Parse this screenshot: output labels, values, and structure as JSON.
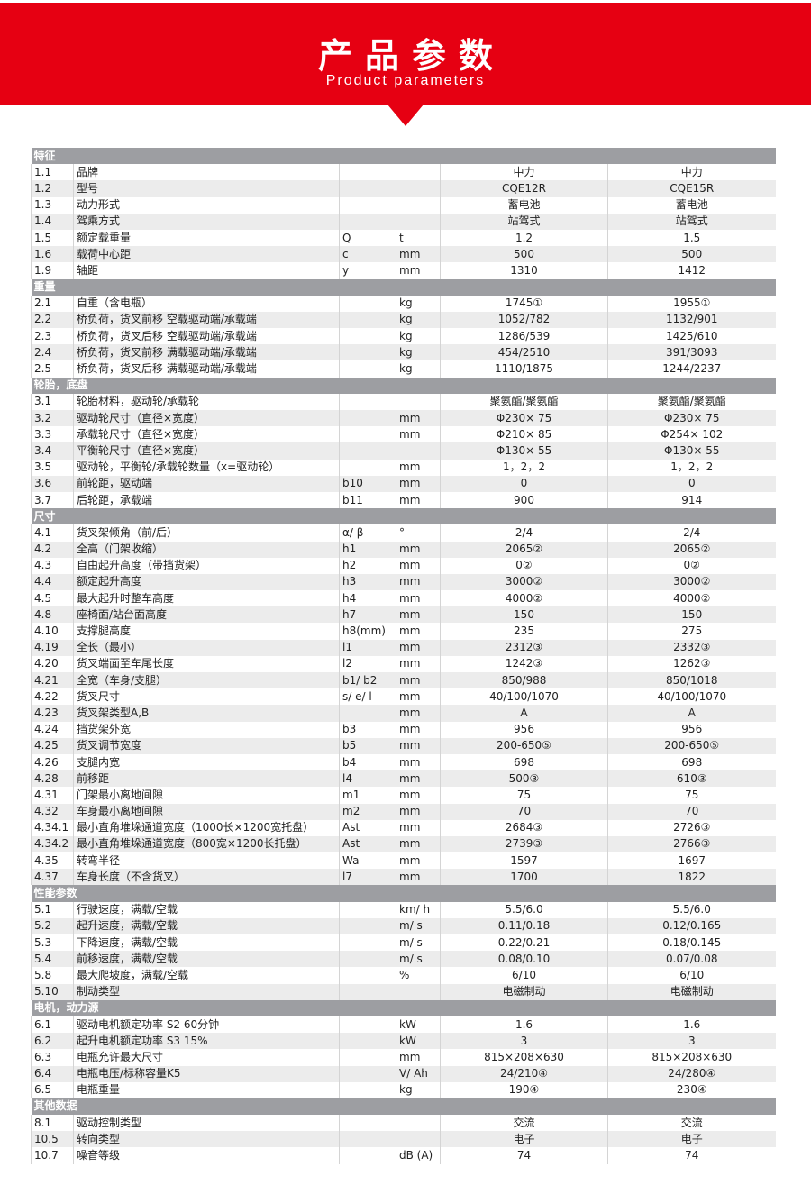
{
  "header": {
    "title": "产品参数",
    "subtitle": "Product parameters"
  },
  "colors": {
    "brand": "#e60012",
    "section": "#9d9ea2",
    "alt_row": "#ececec"
  },
  "sections": [
    {
      "title": "特征",
      "rows": [
        [
          "1.1",
          "品牌",
          "",
          "",
          "中力",
          "中力"
        ],
        [
          "1.2",
          "型号",
          "",
          "",
          "CQE12R",
          "CQE15R"
        ],
        [
          "1.3",
          "动力形式",
          "",
          "",
          "蓄电池",
          "蓄电池"
        ],
        [
          "1.4",
          "驾乘方式",
          "",
          "",
          "站驾式",
          "站驾式"
        ],
        [
          "1.5",
          "额定载重量",
          "Q",
          "t",
          "1.2",
          "1.5"
        ],
        [
          "1.6",
          "载荷中心距",
          "c",
          "mm",
          "500",
          "500"
        ],
        [
          "1.9",
          "轴距",
          "y",
          "mm",
          "1310",
          "1412"
        ]
      ]
    },
    {
      "title": "重量",
      "rows": [
        [
          "2.1",
          "自重（含电瓶）",
          "",
          "kg",
          "1745①",
          "1955①"
        ],
        [
          "2.2",
          "桥负荷，货叉前移 空载驱动端/承载端",
          "",
          "kg",
          "1052/782",
          "1132/901"
        ],
        [
          "2.3",
          "桥负荷，货叉后移 空载驱动端/承载端",
          "",
          "kg",
          "1286/539",
          "1425/610"
        ],
        [
          "2.4",
          "桥负荷，货叉前移 满载驱动端/承载端",
          "",
          "kg",
          "454/2510",
          "391/3093"
        ],
        [
          "2.5",
          "桥负荷，货叉后移 满载驱动端/承载端",
          "",
          "kg",
          "1110/1875",
          "1244/2237"
        ]
      ]
    },
    {
      "title": "轮胎，底盘",
      "rows": [
        [
          "3.1",
          "轮胎材料，驱动轮/承载轮",
          "",
          "",
          "聚氨酯/聚氨酯",
          "聚氨酯/聚氨酯"
        ],
        [
          "3.2",
          "驱动轮尺寸（直径×宽度）",
          "",
          "mm",
          "Φ230× 75",
          "Φ230× 75"
        ],
        [
          "3.3",
          "承载轮尺寸（直径×宽度）",
          "",
          "mm",
          "Φ210× 85",
          "Φ254× 102"
        ],
        [
          "3.4",
          "平衡轮尺寸（直径×宽度）",
          "",
          "",
          "Φ130× 55",
          "Φ130× 55"
        ],
        [
          "3.5",
          "驱动轮，平衡轮/承载轮数量（x=驱动轮）",
          "",
          "mm",
          "1，2，2",
          "1，2，2"
        ],
        [
          "3.6",
          "前轮距，驱动端",
          "b10",
          "mm",
          "0",
          "0"
        ],
        [
          "3.7",
          "后轮距，承载端",
          "b11",
          "mm",
          "900",
          "914"
        ]
      ]
    },
    {
      "title": "尺寸",
      "rows": [
        [
          "4.1",
          "货叉架倾角（前/后）",
          "α/ β",
          "°",
          "2/4",
          "2/4"
        ],
        [
          "4.2",
          "全高（门架收缩）",
          "h1",
          "mm",
          "2065②",
          "2065②"
        ],
        [
          "4.3",
          "自由起升高度（带挡货架）",
          "h2",
          "mm",
          "0②",
          "0②"
        ],
        [
          "4.4",
          "额定起升高度",
          "h3",
          "mm",
          "3000②",
          "3000②"
        ],
        [
          "4.5",
          "最大起升时整车高度",
          "h4",
          "mm",
          "4000②",
          "4000②"
        ],
        [
          "4.8",
          "座椅面/站台面高度",
          "h7",
          "mm",
          "150",
          "150"
        ],
        [
          "4.10",
          "支撑腿高度",
          "h8(mm)",
          "mm",
          "235",
          "275"
        ],
        [
          "4.19",
          "全长（最小）",
          "l1",
          "mm",
          "2312③",
          "2332③"
        ],
        [
          "4.20",
          "货叉端面至车尾长度",
          "l2",
          "mm",
          "1242③",
          "1262③"
        ],
        [
          "4.21",
          "全宽（车身/支腿）",
          "b1/ b2",
          "mm",
          "850/988",
          "850/1018"
        ],
        [
          "4.22",
          "货叉尺寸",
          "s/ e/ l",
          "mm",
          "40/100/1070",
          "40/100/1070"
        ],
        [
          "4.23",
          "货叉架类型A,B",
          "",
          "mm",
          "A",
          "A"
        ],
        [
          "4.24",
          "挡货架外宽",
          "b3",
          "mm",
          "956",
          "956"
        ],
        [
          "4.25",
          "货叉调节宽度",
          "b5",
          "mm",
          "200-650⑤",
          "200-650⑤"
        ],
        [
          "4.26",
          "支腿内宽",
          "b4",
          "mm",
          "698",
          "698"
        ],
        [
          "4.28",
          "前移距",
          "l4",
          "mm",
          "500③",
          "610③"
        ],
        [
          "4.31",
          "门架最小离地间隙",
          "m1",
          "mm",
          "75",
          "75"
        ],
        [
          "4.32",
          "车身最小离地间隙",
          "m2",
          "mm",
          "70",
          "70"
        ],
        [
          "4.34.1",
          "最小直角堆垛通道宽度（1000长×1200宽托盘）",
          "Ast",
          "mm",
          "2684③",
          "2726③"
        ],
        [
          "4.34.2",
          "最小直角堆垛通道宽度（800宽×1200长托盘）",
          "Ast",
          "mm",
          "2739③",
          "2766③"
        ],
        [
          "4.35",
          "转弯半径",
          "Wa",
          "mm",
          "1597",
          "1697"
        ],
        [
          "4.37",
          "车身长度（不含货叉）",
          "l7",
          "mm",
          "1700",
          "1822"
        ]
      ]
    },
    {
      "title": "性能参数",
      "rows": [
        [
          "5.1",
          "行驶速度，满载/空载",
          "",
          "km/ h",
          "5.5/6.0",
          "5.5/6.0"
        ],
        [
          "5.2",
          "起升速度，满载/空载",
          "",
          "m/ s",
          "0.11/0.18",
          "0.12/0.165"
        ],
        [
          "5.3",
          "下降速度，满载/空载",
          "",
          "m/ s",
          "0.22/0.21",
          "0.18/0.145"
        ],
        [
          "5.4",
          "前移速度，满载/空载",
          "",
          "m/ s",
          "0.08/0.10",
          "0.07/0.08"
        ],
        [
          "5.8",
          "最大爬坡度，满载/空载",
          "",
          "%",
          "6/10",
          "6/10"
        ],
        [
          "5.10",
          "制动类型",
          "",
          "",
          "电磁制动",
          "电磁制动"
        ]
      ]
    },
    {
      "title": "电机，动力源",
      "rows": [
        [
          "6.1",
          "驱动电机额定功率 S2 60分钟",
          "",
          "kW",
          "1.6",
          "1.6"
        ],
        [
          "6.2",
          "起升电机额定功率 S3 15%",
          "",
          "kW",
          "3",
          "3"
        ],
        [
          "6.3",
          "电瓶允许最大尺寸",
          "",
          "mm",
          "815×208×630",
          "815×208×630"
        ],
        [
          "6.4",
          "电瓶电压/标称容量K5",
          "",
          "V/ Ah",
          "24/210④",
          "24/280④"
        ],
        [
          "6.5",
          "电瓶重量",
          "",
          "kg",
          "190④",
          "230④"
        ]
      ]
    },
    {
      "title": "其他数据",
      "rows": [
        [
          "8.1",
          "驱动控制类型",
          "",
          "",
          "交流",
          "交流"
        ],
        [
          "10.5",
          "转向类型",
          "",
          "",
          "电子",
          "电子"
        ],
        [
          "10.7",
          "噪音等级",
          "",
          "dB (A)",
          "74",
          "74"
        ]
      ]
    }
  ]
}
